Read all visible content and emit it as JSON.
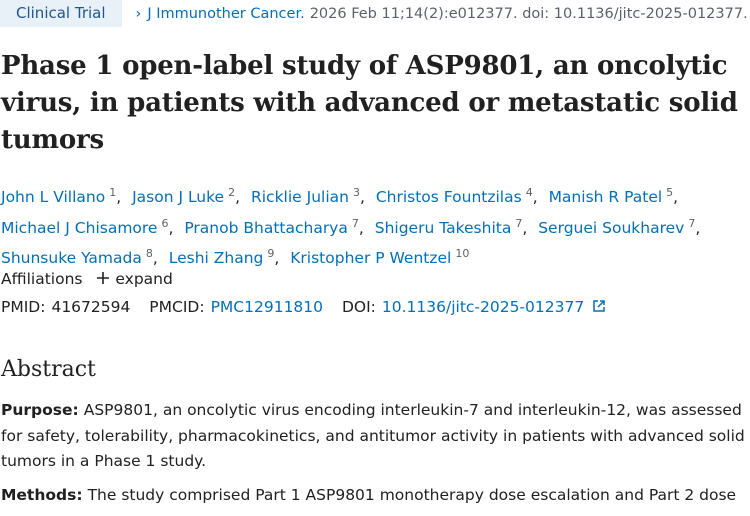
{
  "header": {
    "badge": "Clinical Trial",
    "journal": "J Immunother Cancer.",
    "citation": "2026 Feb 11;14(2):e012377. doi: 10.1136/jitc-2025-012377."
  },
  "title": "Phase 1 open-label study of ASP9801, an oncolytic virus, in patients with advanced or metastatic solid tumors",
  "authors": {
    "separator": ",",
    "list": [
      {
        "name": "John L Villano",
        "sup": "1"
      },
      {
        "name": "Jason J Luke",
        "sup": "2"
      },
      {
        "name": "Ricklie Julian",
        "sup": "3"
      },
      {
        "name": "Christos Fountzilas",
        "sup": "4"
      },
      {
        "name": "Manish R Patel",
        "sup": "5"
      },
      {
        "name": "Michael J Chisamore",
        "sup": "6"
      },
      {
        "name": "Pranob Bhattacharya",
        "sup": "7"
      },
      {
        "name": "Shigeru Takeshita",
        "sup": "7"
      },
      {
        "name": "Serguei Soukharev",
        "sup": "7"
      },
      {
        "name": "Shunsuke Yamada",
        "sup": "8"
      },
      {
        "name": "Leshi Zhang",
        "sup": "9"
      },
      {
        "name": "Kristopher P Wentzel",
        "sup": "10"
      }
    ]
  },
  "affiliations": {
    "label": "Affiliations",
    "toggle": "expand"
  },
  "identifiers": {
    "pmid_label": "PMID:",
    "pmid": "41672594",
    "pmcid_label": "PMCID:",
    "pmcid": "PMC12911810",
    "doi_label": "DOI:",
    "doi": "10.1136/jitc-2025-012377"
  },
  "abstract": {
    "heading": "Abstract",
    "sections": [
      {
        "label": "Purpose:",
        "text": "ASP9801, an oncolytic virus encoding interleukin-7 and interleukin-12, was assessed for safety, tolerability, pharmacokinetics, and antitumor activity in patients with advanced solid tumors in a Phase 1 study."
      },
      {
        "label": "Methods:",
        "text": "The study comprised Part 1 ASP9801 monotherapy dose escalation and Part 2 dose"
      }
    ]
  }
}
